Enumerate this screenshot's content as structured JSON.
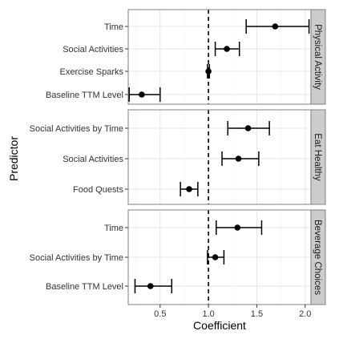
{
  "chart_data": {
    "type": "forest",
    "xlabel": "Coefficient",
    "ylabel": "Predictor",
    "xlim": [
      0.17,
      2.06
    ],
    "xticks": [
      {
        "value": 0.5,
        "label": "0.5"
      },
      {
        "value": 1.0,
        "label": "1.0"
      },
      {
        "value": 1.5,
        "label": "1.5"
      },
      {
        "value": 2.0,
        "label": "2.0"
      }
    ],
    "reference_line": {
      "value": 1.0,
      "style": "dashed"
    },
    "grid": true,
    "colors": {
      "panel_background": "#ffffff",
      "grid_major": "#e6e6e6",
      "grid_minor": "#f2f2f2",
      "panel_border": "#7f7f7f",
      "strip_background": "#cccccc",
      "points": "#000000"
    },
    "panels": [
      {
        "strip": "Physical Activity",
        "rows": [
          {
            "label": "Time",
            "estimate": 1.69,
            "lower": 1.39,
            "upper": 2.04
          },
          {
            "label": "Social Activities",
            "estimate": 1.19,
            "lower": 1.07,
            "upper": 1.32
          },
          {
            "label": "Exercise Sparks",
            "estimate": 1.0,
            "lower": 0.99,
            "upper": 1.01
          },
          {
            "label": "Baseline TTM Level",
            "estimate": 0.31,
            "lower": 0.18,
            "upper": 0.5
          }
        ]
      },
      {
        "strip": "Eat Healthy",
        "rows": [
          {
            "label": "Social Activities by Time",
            "estimate": 1.41,
            "lower": 1.2,
            "upper": 1.63
          },
          {
            "label": "Social Activities",
            "estimate": 1.31,
            "lower": 1.14,
            "upper": 1.52
          },
          {
            "label": "Food Quests",
            "estimate": 0.8,
            "lower": 0.71,
            "upper": 0.89
          }
        ]
      },
      {
        "strip": "Beverage Choices",
        "rows": [
          {
            "label": "Time",
            "estimate": 1.3,
            "lower": 1.08,
            "upper": 1.55
          },
          {
            "label": "Social Activities by Time",
            "estimate": 1.07,
            "lower": 0.99,
            "upper": 1.16
          },
          {
            "label": "Baseline TTM Level",
            "estimate": 0.4,
            "lower": 0.24,
            "upper": 0.62
          }
        ]
      }
    ]
  }
}
